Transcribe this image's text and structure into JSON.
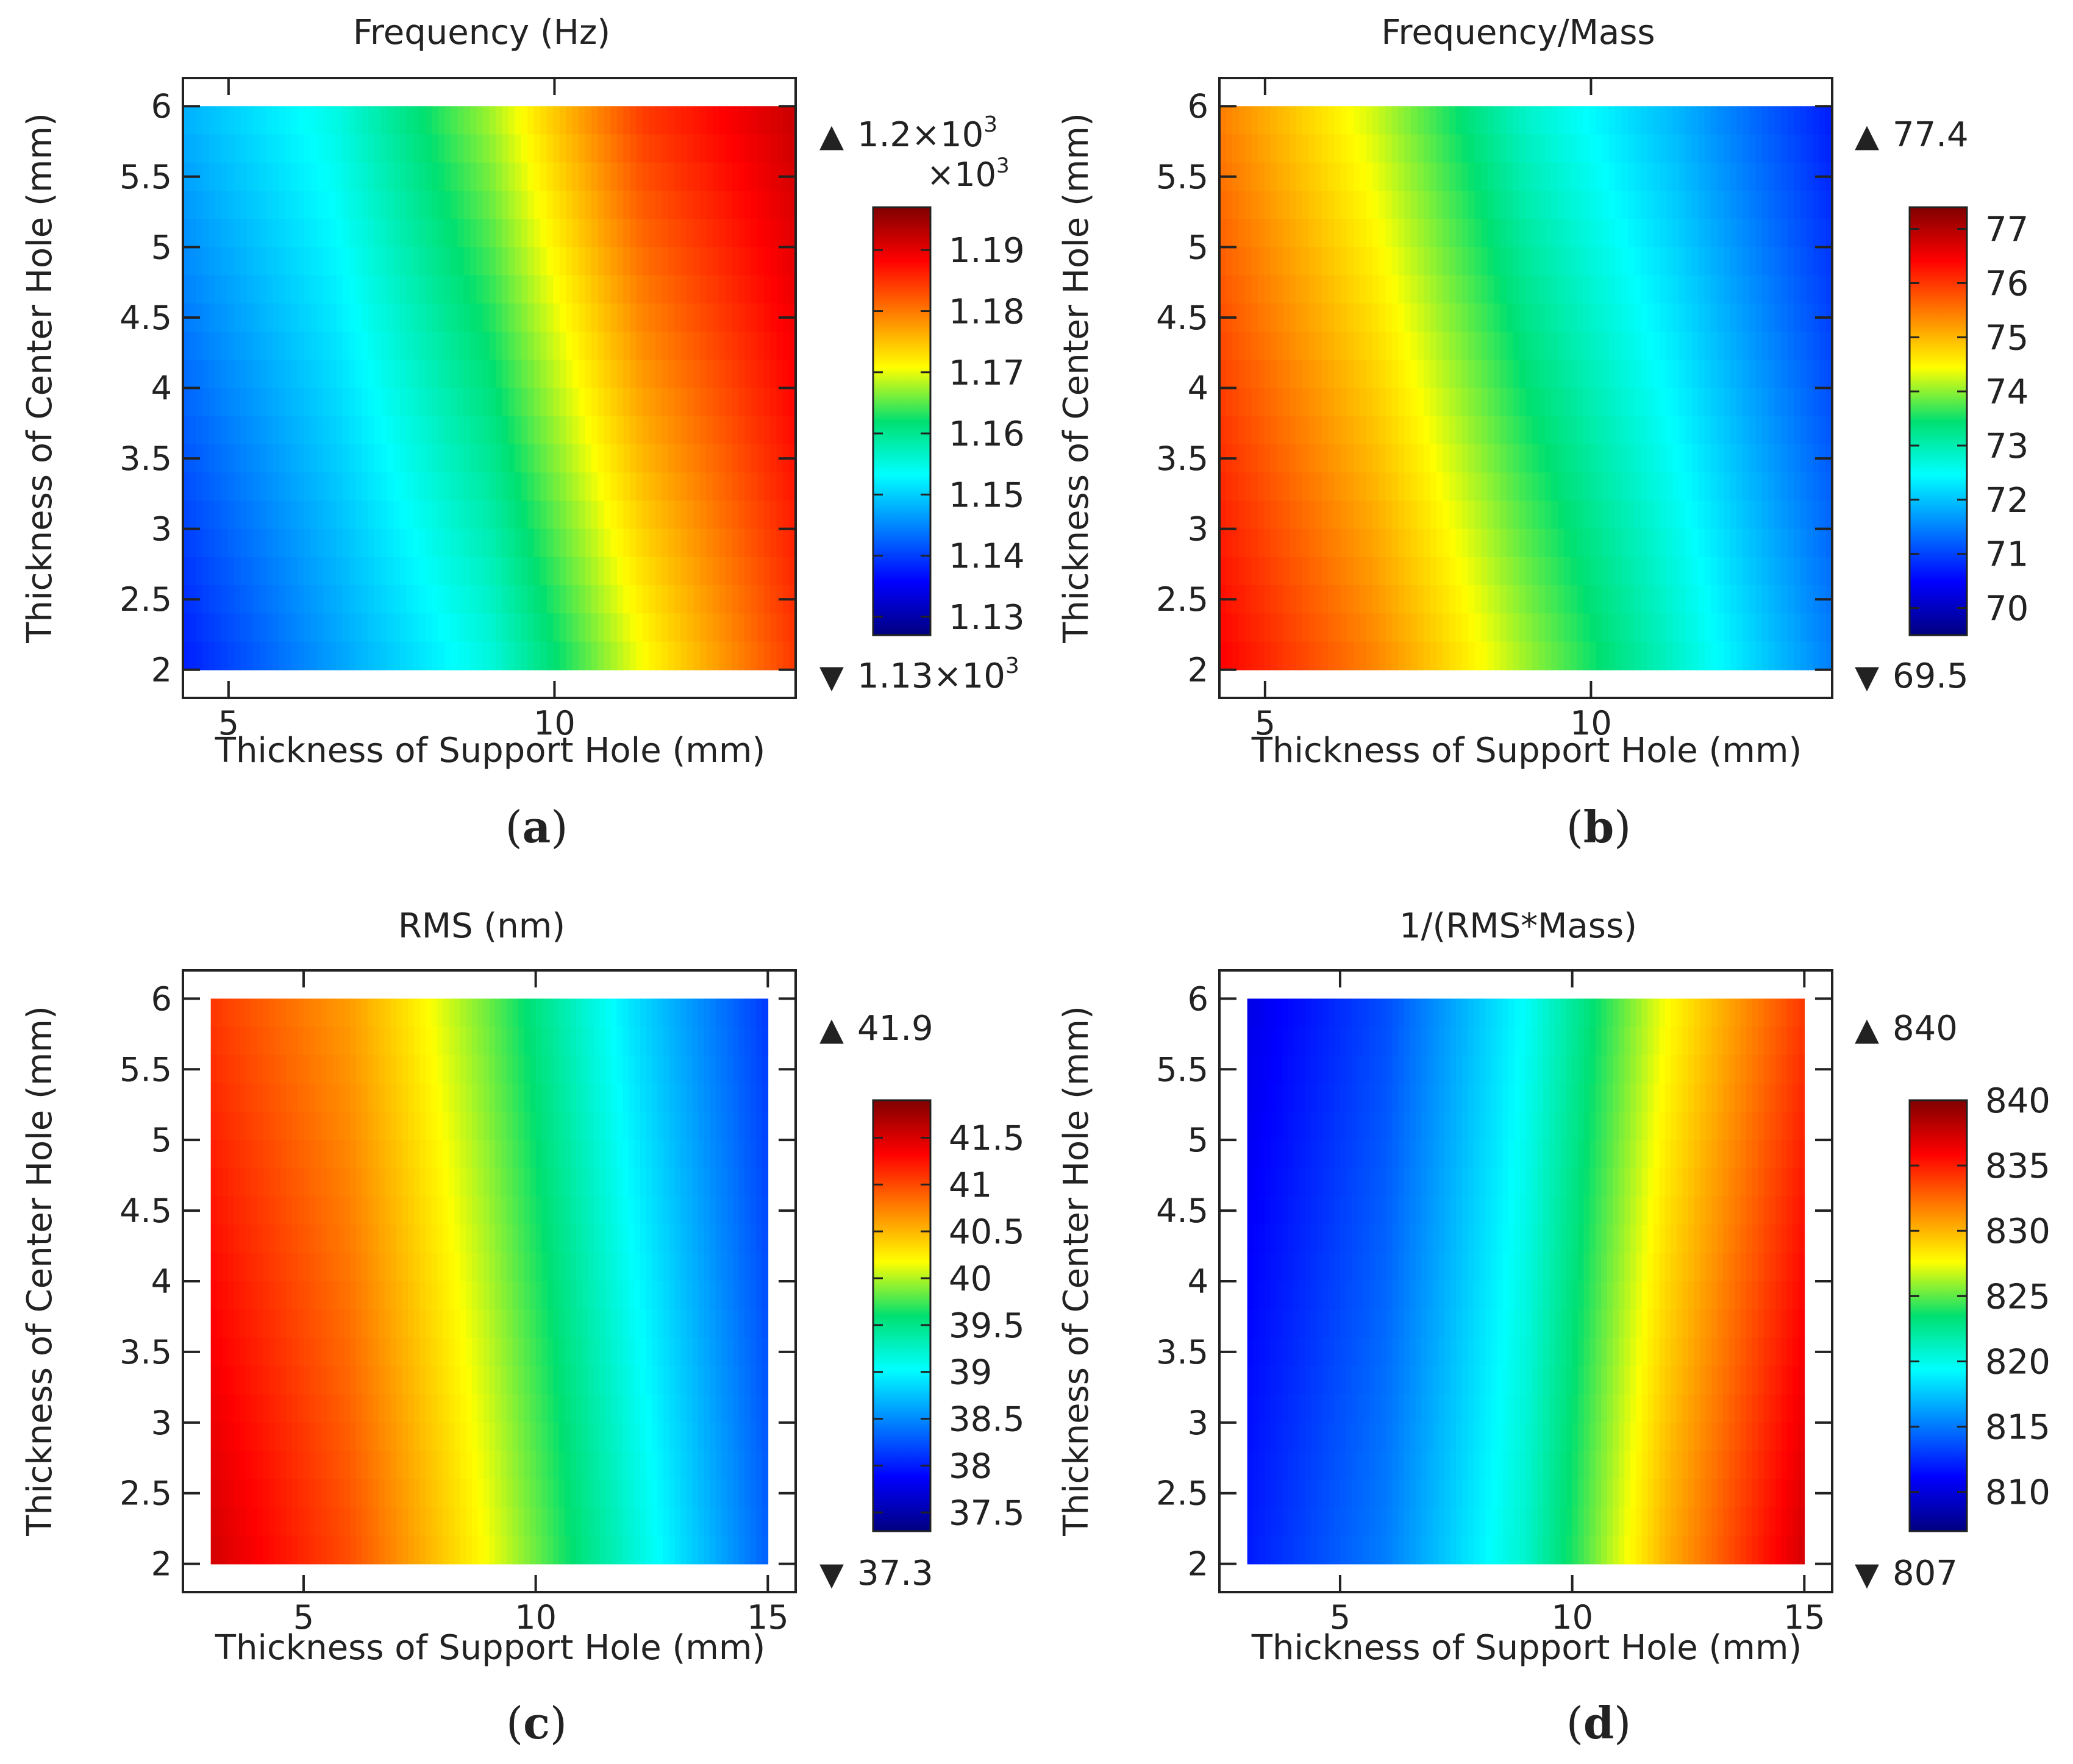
{
  "figure": {
    "colormap": [
      "#000080",
      "#0000ff",
      "#0080ff",
      "#00ffff",
      "#00e070",
      "#ffff00",
      "#ff8000",
      "#ff0000",
      "#800000"
    ]
  },
  "chart_data": [
    {
      "id": "a",
      "type": "heatmap",
      "panel_label": "a",
      "title": "Frequency (Hz)",
      "xlabel": "Thickness of Support Hole (mm)",
      "ylabel": "Thickness of Center Hole (mm)",
      "xlim": [
        4.3,
        13.7
      ],
      "ylim": [
        1.8,
        6.2
      ],
      "data_x": [
        4.3,
        13.7
      ],
      "data_y": [
        2,
        6
      ],
      "xticks": [
        5,
        10
      ],
      "yticks": [
        2,
        2.5,
        3,
        3.5,
        4,
        4.5,
        5,
        5.5,
        6
      ],
      "gradient": {
        "low_side": "left",
        "top_row": [
          0.3,
          0.4,
          0.58,
          0.82,
          0.93
        ],
        "bottom_row": [
          0.15,
          0.28,
          0.4,
          0.62,
          0.82
        ]
      },
      "colorbar": {
        "min": 1.127,
        "max": 1.197,
        "ticks": [
          "1.19",
          "1.18",
          "1.17",
          "1.16",
          "1.15",
          "1.14",
          "1.13"
        ],
        "tick_values": [
          1.19,
          1.18,
          1.17,
          1.16,
          1.15,
          1.14,
          1.13
        ],
        "multiplier": "×10",
        "multiplier_exp": "3"
      },
      "max_label": "1.2×10",
      "max_exp": "3",
      "min_label": "1.13×10",
      "min_exp": "3"
    },
    {
      "id": "b",
      "type": "heatmap",
      "panel_label": "b",
      "title": "Frequency/Mass",
      "xlabel": "Thickness of Support Hole (mm)",
      "ylabel": "Thickness of Center Hole (mm)",
      "xlim": [
        4.3,
        13.7
      ],
      "ylim": [
        1.8,
        6.2
      ],
      "data_x": [
        4.3,
        13.7
      ],
      "data_y": [
        2,
        6
      ],
      "xticks": [
        5,
        10
      ],
      "yticks": [
        2,
        2.5,
        3,
        3.5,
        4,
        4.5,
        5,
        5.5,
        6
      ],
      "gradient": {
        "low_side": "right",
        "top_row": [
          0.75,
          0.6,
          0.42,
          0.3,
          0.15
        ],
        "bottom_row": [
          0.88,
          0.75,
          0.58,
          0.42,
          0.25
        ]
      },
      "colorbar": {
        "min": 69.5,
        "max": 77.4,
        "ticks": [
          "77",
          "76",
          "75",
          "74",
          "73",
          "72",
          "71",
          "70"
        ],
        "tick_values": [
          77,
          76,
          75,
          74,
          73,
          72,
          71,
          70
        ]
      },
      "max_label": "77.4",
      "min_label": "69.5"
    },
    {
      "id": "c",
      "type": "heatmap",
      "panel_label": "c",
      "title": "RMS (nm)",
      "xlabel": "Thickness of Support Hole (mm)",
      "ylabel": "Thickness of Center Hole (mm)",
      "xlim": [
        2.4,
        15.6
      ],
      "ylim": [
        1.8,
        6.2
      ],
      "data_x": [
        3,
        15
      ],
      "data_y": [
        2,
        6
      ],
      "xticks": [
        5,
        10,
        15
      ],
      "yticks": [
        2,
        2.5,
        3,
        3.5,
        4,
        4.5,
        5,
        5.5,
        6
      ],
      "gradient": {
        "low_side": "right",
        "top_row": [
          0.82,
          0.72,
          0.55,
          0.35,
          0.18
        ],
        "bottom_row": [
          0.92,
          0.8,
          0.62,
          0.42,
          0.22
        ]
      },
      "colorbar": {
        "min": 37.3,
        "max": 41.9,
        "ticks": [
          "41.5",
          "41",
          "40.5",
          "40",
          "39.5",
          "39",
          "38.5",
          "38",
          "37.5"
        ],
        "tick_values": [
          41.5,
          41,
          40.5,
          40,
          39.5,
          39,
          38.5,
          38,
          37.5
        ]
      },
      "max_label": "41.9",
      "min_label": "37.3"
    },
    {
      "id": "d",
      "type": "heatmap",
      "panel_label": "d",
      "title": "1/(RMS*Mass)",
      "xlabel": "Thickness of Support Hole (mm)",
      "ylabel": "Thickness of Center Hole (mm)",
      "xlim": [
        2.4,
        15.6
      ],
      "ylim": [
        1.8,
        6.2
      ],
      "data_x": [
        3,
        15
      ],
      "data_y": [
        2,
        6
      ],
      "xticks": [
        5,
        10,
        15
      ],
      "yticks": [
        2,
        2.5,
        3,
        3.5,
        4,
        4.5,
        5,
        5.5,
        6
      ],
      "gradient": {
        "low_side": "left",
        "top_row": [
          0.1,
          0.2,
          0.38,
          0.62,
          0.82
        ],
        "bottom_row": [
          0.15,
          0.25,
          0.42,
          0.7,
          0.92
        ]
      },
      "colorbar": {
        "min": 807,
        "max": 840,
        "ticks": [
          "840",
          "835",
          "830",
          "825",
          "820",
          "815",
          "810"
        ],
        "tick_values": [
          840,
          835,
          830,
          825,
          820,
          815,
          810
        ]
      },
      "max_label": "840",
      "min_label": "807"
    }
  ]
}
